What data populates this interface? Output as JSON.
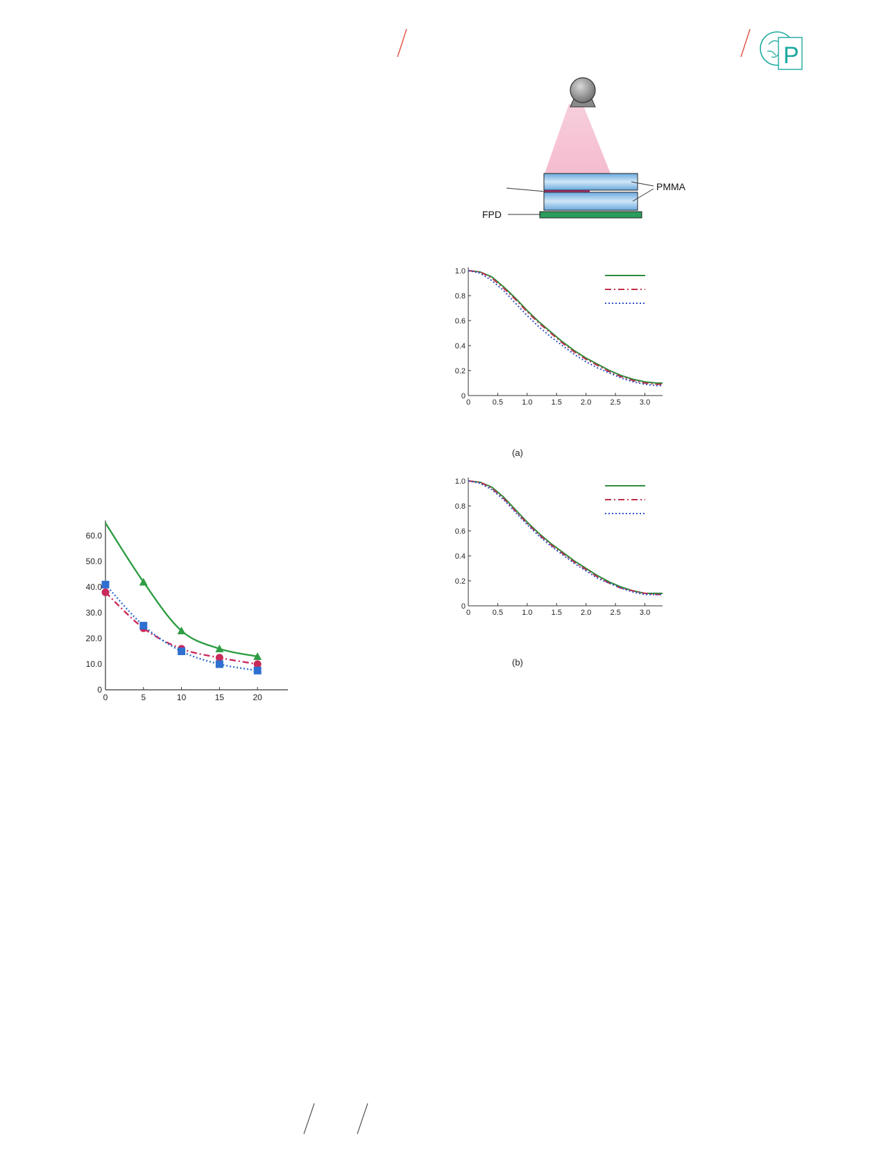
{
  "header": {
    "logo_icon": "brain-p-logo-icon",
    "accent": "#e0584c",
    "logo_color": "#1ca9a0"
  },
  "diagram": {
    "label_pmma": "PMMA",
    "label_fpd": "FPD",
    "colors": {
      "beam": "#f4b9cc",
      "plate": "#8fc4ea",
      "detector": "#2a9d5c",
      "source": "#888888"
    }
  },
  "chart_a": {
    "caption": "(a)",
    "chart_data": {
      "type": "line",
      "xlim": [
        0,
        3.3
      ],
      "ylim": [
        0,
        1.0
      ],
      "x_ticks": [
        "0",
        "0.5",
        "1.0",
        "1.5",
        "2.0",
        "2.5",
        "3.0"
      ],
      "y_ticks": [
        "0",
        "0.2",
        "0.4",
        "0.6",
        "0.8",
        "1.0"
      ],
      "series": [
        {
          "color": "#2e8b3a",
          "dash": "solid",
          "x": [
            0,
            0.2,
            0.4,
            0.6,
            0.8,
            1.0,
            1.2,
            1.4,
            1.6,
            1.8,
            2.0,
            2.2,
            2.4,
            2.6,
            2.8,
            3.0,
            3.2,
            3.3
          ],
          "y": [
            1.0,
            0.99,
            0.95,
            0.87,
            0.78,
            0.68,
            0.59,
            0.51,
            0.43,
            0.36,
            0.3,
            0.25,
            0.2,
            0.16,
            0.13,
            0.11,
            0.1,
            0.1
          ]
        },
        {
          "color": "#c0304a",
          "dash": "dashdot",
          "x": [
            0,
            0.2,
            0.4,
            0.6,
            0.8,
            1.0,
            1.2,
            1.4,
            1.6,
            1.8,
            2.0,
            2.2,
            2.4,
            2.6,
            2.8,
            3.0,
            3.2,
            3.3
          ],
          "y": [
            1.0,
            0.99,
            0.94,
            0.86,
            0.77,
            0.67,
            0.58,
            0.5,
            0.42,
            0.35,
            0.29,
            0.24,
            0.19,
            0.15,
            0.12,
            0.1,
            0.09,
            0.09
          ]
        },
        {
          "color": "#3050c8",
          "dash": "dotted",
          "x": [
            0,
            0.2,
            0.4,
            0.6,
            0.8,
            1.0,
            1.2,
            1.4,
            1.6,
            1.8,
            2.0,
            2.2,
            2.4,
            2.6,
            2.8,
            3.0,
            3.2,
            3.3
          ],
          "y": [
            1.0,
            0.98,
            0.92,
            0.84,
            0.74,
            0.64,
            0.55,
            0.47,
            0.4,
            0.33,
            0.27,
            0.22,
            0.18,
            0.14,
            0.11,
            0.09,
            0.08,
            0.08
          ]
        }
      ]
    }
  },
  "chart_b": {
    "caption": "(b)",
    "chart_data": {
      "type": "line",
      "xlim": [
        0,
        3.3
      ],
      "ylim": [
        0,
        1.0
      ],
      "x_ticks": [
        "0",
        "0.5",
        "1.0",
        "1.5",
        "2.0",
        "2.5",
        "3.0"
      ],
      "y_ticks": [
        "0",
        "0.2",
        "0.4",
        "0.6",
        "0.8",
        "1.0"
      ],
      "series": [
        {
          "color": "#2e8b3a",
          "dash": "solid",
          "x": [
            0,
            0.2,
            0.4,
            0.6,
            0.8,
            1.0,
            1.2,
            1.4,
            1.6,
            1.8,
            2.0,
            2.2,
            2.4,
            2.6,
            2.8,
            3.0,
            3.2,
            3.3
          ],
          "y": [
            1.0,
            0.99,
            0.95,
            0.87,
            0.77,
            0.67,
            0.58,
            0.5,
            0.43,
            0.36,
            0.3,
            0.24,
            0.19,
            0.15,
            0.12,
            0.1,
            0.1,
            0.1
          ]
        },
        {
          "color": "#c0304a",
          "dash": "dashdot",
          "x": [
            0,
            0.2,
            0.4,
            0.6,
            0.8,
            1.0,
            1.2,
            1.4,
            1.6,
            1.8,
            2.0,
            2.2,
            2.4,
            2.6,
            2.8,
            3.0,
            3.2,
            3.3
          ],
          "y": [
            1.0,
            0.99,
            0.94,
            0.86,
            0.76,
            0.66,
            0.57,
            0.49,
            0.42,
            0.35,
            0.29,
            0.23,
            0.18,
            0.14,
            0.12,
            0.1,
            0.09,
            0.09
          ]
        },
        {
          "color": "#3050c8",
          "dash": "dotted",
          "x": [
            0,
            0.2,
            0.4,
            0.6,
            0.8,
            1.0,
            1.2,
            1.4,
            1.6,
            1.8,
            2.0,
            2.2,
            2.4,
            2.6,
            2.8,
            3.0,
            3.2,
            3.3
          ],
          "y": [
            1.0,
            0.98,
            0.93,
            0.85,
            0.75,
            0.65,
            0.56,
            0.48,
            0.41,
            0.34,
            0.28,
            0.22,
            0.18,
            0.14,
            0.11,
            0.09,
            0.09,
            0.09
          ]
        }
      ]
    }
  },
  "chart_c": {
    "chart_data": {
      "type": "line",
      "xlim": [
        0,
        24
      ],
      "ylim": [
        0,
        66
      ],
      "x_ticks": [
        "0",
        "5",
        "10",
        "15",
        "20"
      ],
      "x_tick_values": [
        0,
        5,
        10,
        15,
        20
      ],
      "y_ticks": [
        "0",
        "10.0",
        "20.0",
        "30.0",
        "40.0",
        "50.0",
        "60.0"
      ],
      "y_tick_values": [
        0,
        10,
        20,
        30,
        40,
        50,
        60
      ],
      "series": [
        {
          "color": "#2e9d44",
          "dash": "solid",
          "marker": "triangle",
          "x": [
            0,
            5,
            10,
            15,
            20
          ],
          "y": [
            65,
            42,
            23,
            16,
            13
          ]
        },
        {
          "color": "#c82a5a",
          "dash": "dashdot",
          "marker": "circle",
          "x": [
            0,
            5,
            10,
            15,
            20
          ],
          "y": [
            38,
            24,
            16,
            12.5,
            10
          ]
        },
        {
          "color": "#2f6fd0",
          "dash": "dotted",
          "marker": "square",
          "x": [
            0,
            5,
            10,
            15,
            20
          ],
          "y": [
            41,
            25,
            15,
            10,
            7.5
          ]
        }
      ]
    }
  }
}
